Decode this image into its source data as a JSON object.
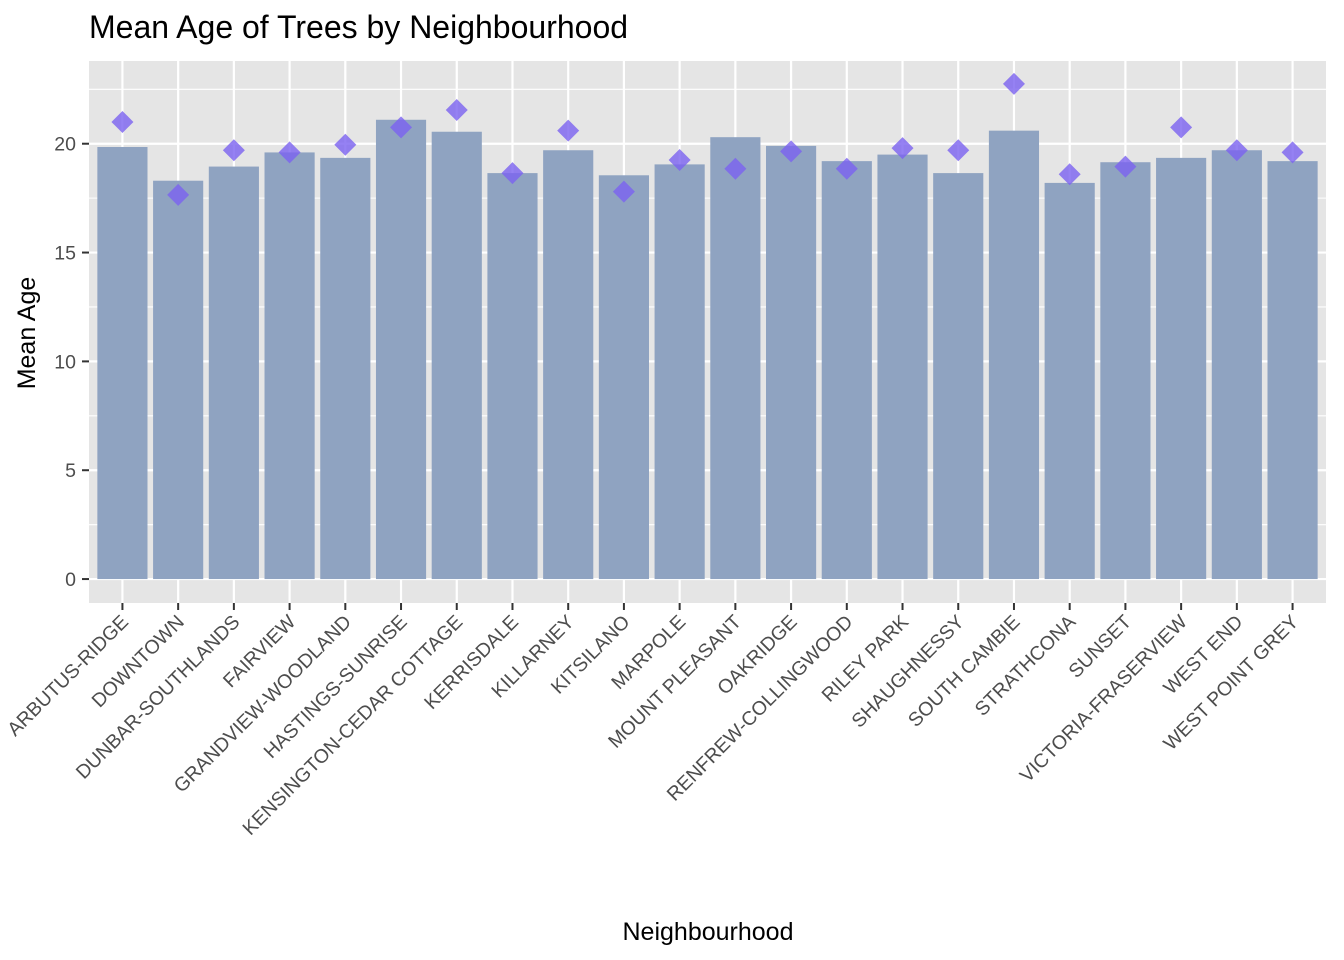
{
  "chart_data": {
    "type": "bar",
    "title": "Mean Age of Trees by Neighbourhood",
    "xlabel": "Neighbourhood",
    "ylabel": "Mean Age",
    "ylim": [
      -1.1,
      23.8
    ],
    "yticks": [
      0,
      5,
      10,
      15,
      20
    ],
    "grid": true,
    "legend": "none",
    "colors": {
      "bar": "#8fa3c1",
      "marker": "#7b61f0",
      "panel": "#e5e5e5",
      "grid": "#ffffff",
      "tick_text": "#4d4d4d"
    },
    "categories": [
      "ARBUTUS-RIDGE",
      "DOWNTOWN",
      "DUNBAR-SOUTHLANDS",
      "FAIRVIEW",
      "GRANDVIEW-WOODLAND",
      "HASTINGS-SUNRISE",
      "KENSINGTON-CEDAR COTTAGE",
      "KERRISDALE",
      "KILLARNEY",
      "KITSILANO",
      "MARPOLE",
      "MOUNT PLEASANT",
      "OAKRIDGE",
      "RENFREW-COLLINGWOOD",
      "RILEY PARK",
      "SHAUGHNESSY",
      "SOUTH CAMBIE",
      "STRATHCONA",
      "SUNSET",
      "VICTORIA-FRASERVIEW",
      "WEST END",
      "WEST POINT GREY"
    ],
    "series": [
      {
        "mark": "bar",
        "values": [
          19.85,
          18.3,
          18.95,
          19.6,
          19.35,
          21.1,
          20.55,
          18.65,
          19.7,
          18.55,
          19.05,
          20.3,
          19.9,
          19.2,
          19.5,
          18.65,
          20.6,
          18.2,
          19.15,
          19.35,
          19.7,
          19.2
        ]
      },
      {
        "mark": "diamond",
        "values": [
          21.0,
          17.65,
          19.7,
          19.6,
          19.95,
          20.75,
          21.55,
          18.65,
          20.6,
          17.8,
          19.25,
          18.85,
          19.65,
          18.85,
          19.8,
          19.7,
          22.75,
          18.6,
          18.95,
          20.75,
          19.7,
          19.6
        ]
      }
    ]
  }
}
